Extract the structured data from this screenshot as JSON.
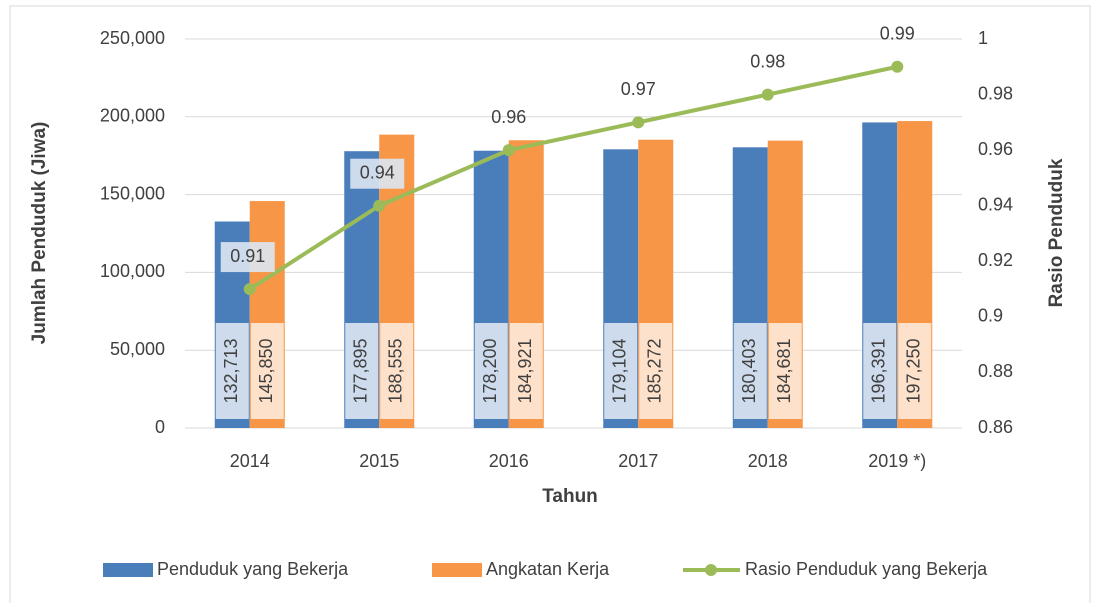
{
  "chart_data": {
    "type": "bar",
    "x_label": "Tahun",
    "y_label": "Jumlah Penduduk (Jiwa)",
    "y2_label": "Rasio Penduduk",
    "categories": [
      "2014",
      "2015",
      "2016",
      "2017",
      "2018",
      "2019 *)"
    ],
    "series": [
      {
        "name": "Penduduk yang Bekerja",
        "color": "#4a7ebb",
        "values": [
          132713,
          177895,
          178200,
          179104,
          180403,
          196391
        ],
        "value_labels": [
          "132,713",
          "177,895",
          "178,200",
          "179,104",
          "180,403",
          "196,391"
        ]
      },
      {
        "name": "Angkatan Kerja",
        "color": "#f79646",
        "values": [
          145850,
          188555,
          184921,
          185272,
          184681,
          197250
        ],
        "value_labels": [
          "145,850",
          "188,555",
          "184,921",
          "185,272",
          "184,681",
          "197,250"
        ]
      },
      {
        "name": "Rasio Penduduk yang Bekerja",
        "color": "#9bbb59",
        "type": "line",
        "axis": "y2",
        "values": [
          0.91,
          0.94,
          0.96,
          0.97,
          0.98,
          0.99
        ]
      }
    ],
    "ylim": [
      0,
      250000
    ],
    "yticks": [
      0,
      {
        "value": 50000,
        "label": "50,000"
      },
      {
        "value": 100000,
        "label": "100,000"
      },
      {
        "value": 150000,
        "label": "150,000"
      },
      {
        "value": 200000,
        "label": "200,000"
      },
      {
        "value": 250000,
        "label": "250,000"
      }
    ],
    "y2lim": [
      0.86,
      1
    ],
    "y2ticks": [
      0.86,
      0.88,
      0.9,
      0.92,
      0.94,
      0.96,
      0.98,
      1
    ],
    "grid": true,
    "legend": "bottom"
  }
}
